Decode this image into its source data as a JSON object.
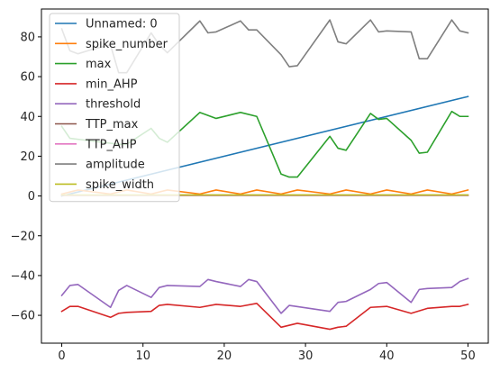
{
  "chart_data": {
    "type": "line",
    "xlim": [
      -2.5,
      52.5
    ],
    "ylim": [
      -74,
      94
    ],
    "xticks": [
      0,
      10,
      20,
      30,
      40,
      50
    ],
    "yticks": [
      -60,
      -40,
      -20,
      0,
      20,
      40,
      60,
      80
    ],
    "grid": false,
    "legend": "top-left",
    "series": [
      {
        "name": "Unnamed: 0",
        "color": "#1f77b4",
        "x": [
          0,
          50
        ],
        "y": [
          0,
          50
        ]
      },
      {
        "name": "spike_number",
        "color": "#ff7f0e",
        "x": [
          0,
          1,
          2,
          4,
          6,
          8,
          11,
          13,
          17,
          19,
          22,
          24,
          27,
          29,
          33,
          35,
          38,
          40,
          43,
          45,
          48,
          50
        ],
        "y": [
          1,
          2,
          3,
          2,
          1,
          3,
          1,
          3,
          1,
          3,
          1,
          3,
          1,
          3,
          1,
          3,
          1,
          3,
          1,
          3,
          1,
          3
        ]
      },
      {
        "name": "max",
        "color": "#2ca02c",
        "x": [
          0,
          1,
          3,
          5,
          7,
          8,
          11,
          12,
          13,
          17,
          19,
          22,
          24,
          27,
          28,
          29,
          33,
          34,
          35,
          38,
          39,
          40,
          43,
          44,
          45,
          48,
          49,
          50
        ],
        "y": [
          35,
          29,
          28,
          27,
          26,
          26,
          34,
          29,
          27,
          42,
          39,
          42,
          40,
          11,
          9.5,
          9.5,
          30,
          24,
          23,
          41.5,
          38.5,
          39,
          28,
          21.5,
          22,
          42.5,
          40,
          40
        ]
      },
      {
        "name": "min_AHP",
        "color": "#d62728",
        "x": [
          0,
          1,
          2,
          6,
          7,
          8,
          11,
          12,
          13,
          17,
          19,
          22,
          24,
          27,
          29,
          33,
          34,
          35,
          38,
          40,
          43,
          45,
          48,
          49,
          50
        ],
        "y": [
          -58,
          -55.5,
          -55.5,
          -61,
          -59,
          -58.5,
          -58,
          -55,
          -54.5,
          -56,
          -54.5,
          -55.5,
          -54,
          -66,
          -64,
          -67,
          -66,
          -65.5,
          -56,
          -55.5,
          -59,
          -56.5,
          -55.5,
          -55.5,
          -54.5
        ]
      },
      {
        "name": "threshold",
        "color": "#9467bd",
        "x": [
          0,
          1,
          2,
          6,
          7,
          8,
          11,
          12,
          13,
          17,
          18,
          19,
          22,
          23,
          24,
          27,
          28,
          33,
          34,
          35,
          38,
          39,
          40,
          43,
          44,
          45,
          48,
          49,
          50
        ],
        "y": [
          -50,
          -45,
          -44.5,
          -56,
          -47.5,
          -45,
          -51,
          -46,
          -45,
          -45.5,
          -42,
          -43,
          -45.5,
          -42,
          -43,
          -59,
          -55,
          -58,
          -53.5,
          -53,
          -47,
          -44,
          -43.5,
          -53.5,
          -47,
          -46.5,
          -46,
          -43,
          -41.5
        ]
      },
      {
        "name": "TTP_max",
        "color": "#8c564b",
        "x": [
          0,
          50
        ],
        "y": [
          0.3,
          0.3
        ]
      },
      {
        "name": "TTP_AHP",
        "color": "#e377c2",
        "x": [
          0,
          50
        ],
        "y": [
          0.4,
          0.4
        ]
      },
      {
        "name": "amplitude",
        "color": "#7f7f7f",
        "x": [
          0,
          1,
          2,
          4,
          6,
          7,
          8,
          11,
          12,
          13,
          17,
          18,
          19,
          22,
          23,
          24,
          27,
          28,
          29,
          33,
          34,
          35,
          38,
          39,
          40,
          43,
          44,
          45,
          48,
          49,
          50
        ],
        "y": [
          84,
          73,
          71.5,
          74,
          76,
          62,
          62,
          82,
          76,
          72,
          88,
          82,
          82.5,
          88,
          83.5,
          83.5,
          71,
          65,
          65.5,
          88.5,
          77.5,
          76.5,
          88.5,
          82.5,
          83,
          82.5,
          69,
          69,
          88.5,
          83,
          82
        ]
      },
      {
        "name": "spike_width",
        "color": "#bcbd22",
        "x": [
          0,
          50
        ],
        "y": [
          0.5,
          0.5
        ]
      }
    ]
  }
}
